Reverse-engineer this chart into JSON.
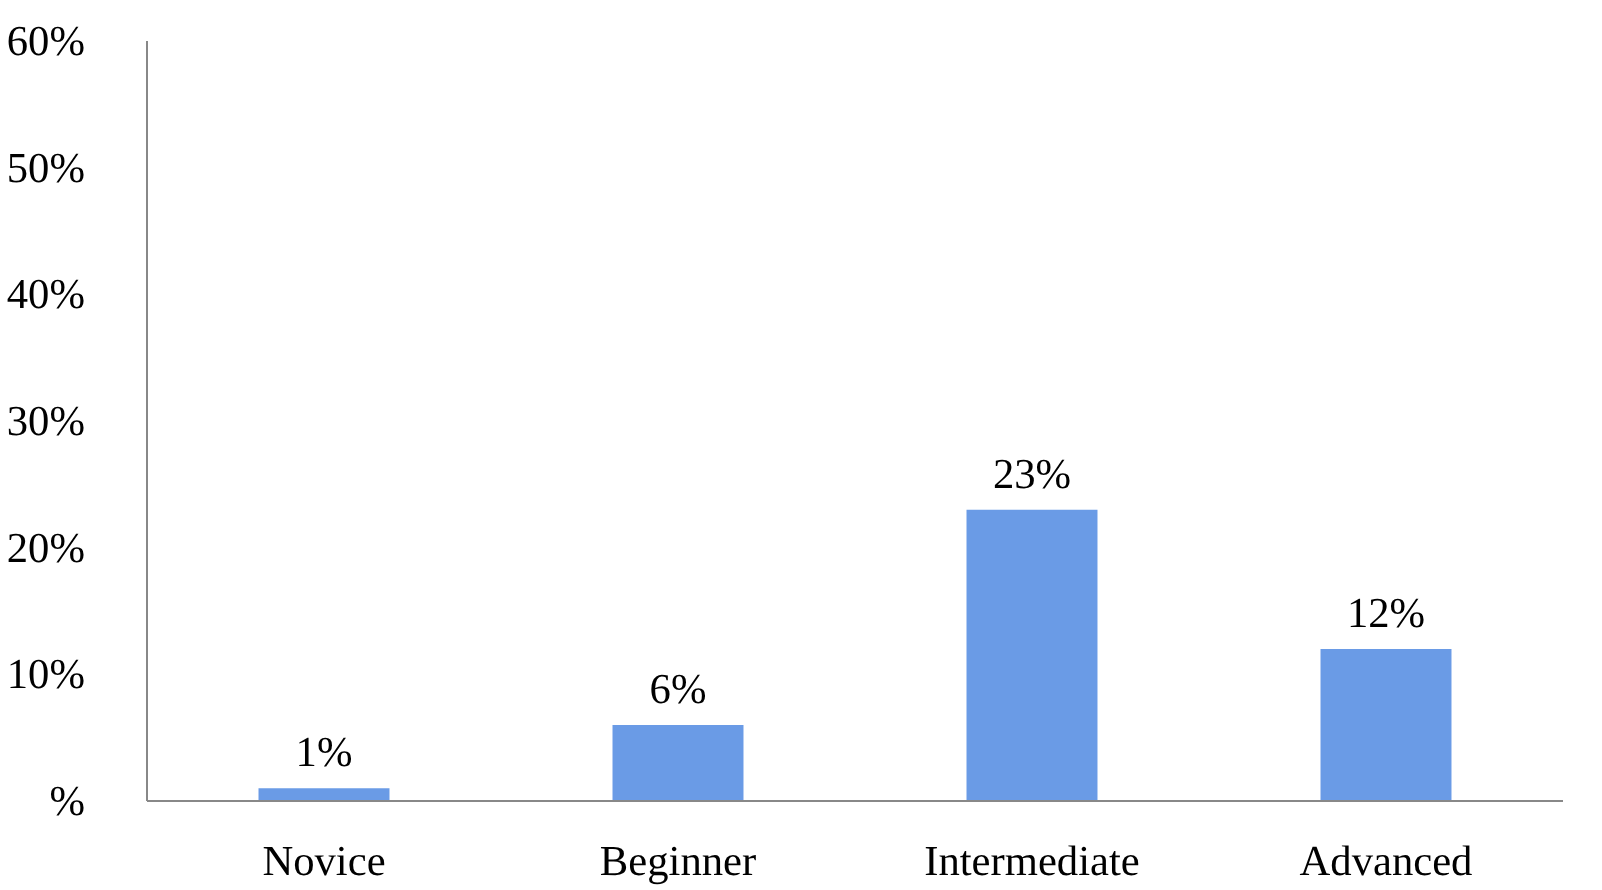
{
  "chart_data": {
    "type": "bar",
    "categories": [
      "Novice",
      "Beginner",
      "Intermediate",
      "Advanced"
    ],
    "values": [
      1,
      6,
      23,
      12
    ],
    "color": "#6a9be6",
    "ylim": [
      0,
      60
    ],
    "yticks": [
      {
        "value": 0,
        "label": "%"
      },
      {
        "value": 10,
        "label": "10%"
      },
      {
        "value": 20,
        "label": "20%"
      },
      {
        "value": 30,
        "label": "30%"
      },
      {
        "value": 40,
        "label": "40%"
      },
      {
        "value": 50,
        "label": "50%"
      },
      {
        "value": 60,
        "label": "60%"
      }
    ],
    "value_labels": [
      "1%",
      "6%",
      "23%",
      "12%"
    ],
    "grid": false
  }
}
